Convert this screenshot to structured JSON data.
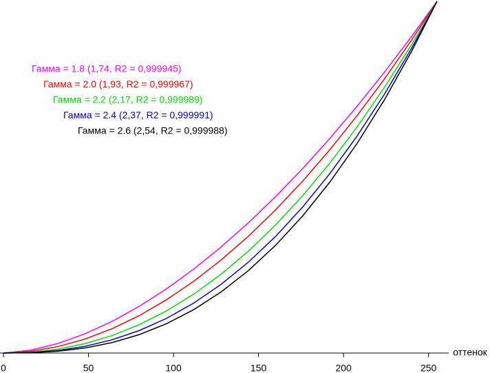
{
  "chart_data": {
    "type": "line",
    "x_label": "оттенок",
    "x": [
      0,
      16,
      32,
      48,
      64,
      80,
      96,
      112,
      128,
      144,
      160,
      176,
      192,
      208,
      224,
      240,
      255
    ],
    "xlim": [
      0,
      255
    ],
    "xticks": [
      0,
      50,
      100,
      150,
      200,
      250
    ],
    "ylim": [
      0,
      1
    ],
    "series": [
      {
        "name": "Гамма = 1.8 (1,74, R2 = 0,999945)",
        "color": "#ff00ff",
        "values": [
          0,
          0.0081,
          0.027,
          0.0547,
          0.0902,
          0.133,
          0.1827,
          0.2389,
          0.3014,
          0.3699,
          0.4444,
          0.5245,
          0.6103,
          0.7016,
          0.7981,
          0.8999,
          1
        ]
      },
      {
        "name": "Гамма = 2.0 (1,93, R2 = 0,999967)",
        "color": "#ff0000",
        "values": [
          0,
          0.0048,
          0.0182,
          0.0398,
          0.0694,
          0.1067,
          0.1518,
          0.2043,
          0.2644,
          0.3319,
          0.4067,
          0.4889,
          0.5783,
          0.675,
          0.7787,
          0.8896,
          1
        ]
      },
      {
        "name": "Гамма = 2.2 (2,17, R2 = 0,999989)",
        "color": "#00dd00",
        "values": [
          0,
          0.0025,
          0.0111,
          0.0267,
          0.0498,
          0.0808,
          0.12,
          0.1677,
          0.2241,
          0.2893,
          0.3637,
          0.4473,
          0.5402,
          0.6428,
          0.7549,
          0.8768,
          1
        ]
      },
      {
        "name": "Гамма = 2.4 (2,37, R2 = 0,999991)",
        "color": "#0000cc",
        "values": [
          0,
          0.0014,
          0.0073,
          0.0191,
          0.0378,
          0.0641,
          0.0988,
          0.1423,
          0.1953,
          0.2581,
          0.3313,
          0.4153,
          0.5104,
          0.6171,
          0.7355,
          0.8662,
          1
        ]
      },
      {
        "name": "Гамма = 2.6 (2,54, R2 = 0,999988)",
        "color": "#000000",
        "values": [
          0,
          0.0009,
          0.0051,
          0.0144,
          0.0299,
          0.0526,
          0.0836,
          0.1237,
          0.1737,
          0.2342,
          0.3061,
          0.3899,
          0.4863,
          0.5961,
          0.7195,
          0.8574,
          1
        ]
      }
    ]
  }
}
